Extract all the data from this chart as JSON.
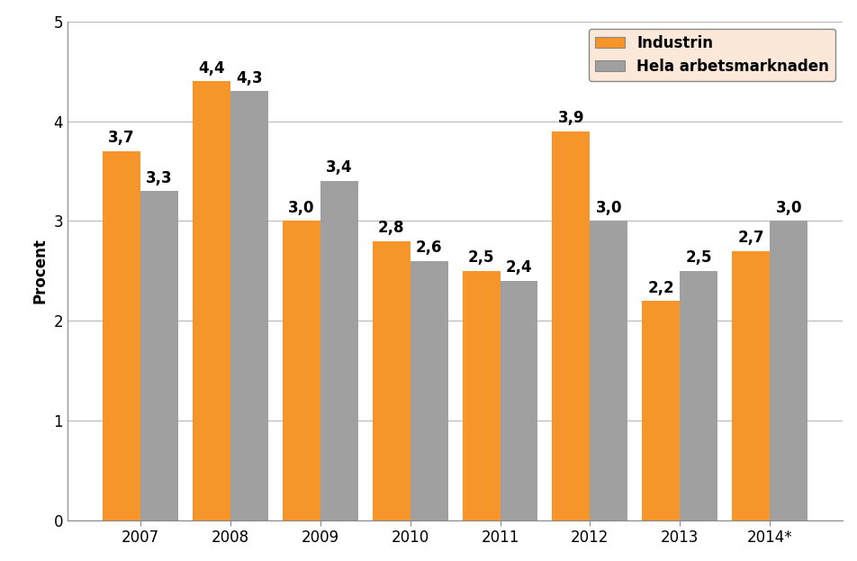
{
  "years": [
    "2007",
    "2008",
    "2009",
    "2010",
    "2011",
    "2012",
    "2013",
    "2014*"
  ],
  "industrin": [
    3.7,
    4.4,
    3.0,
    2.8,
    2.5,
    3.9,
    2.2,
    2.7
  ],
  "hela_arbetsmarknaden": [
    3.3,
    4.3,
    3.4,
    2.6,
    2.4,
    3.0,
    2.5,
    3.0
  ],
  "industrin_color": "#F5952A",
  "hela_color": "#A0A0A0",
  "ylabel": "Procent",
  "ylim": [
    0,
    5
  ],
  "yticks": [
    0,
    1,
    2,
    3,
    4,
    5
  ],
  "legend_industrin": "Industrin",
  "legend_hela": "Hela arbetsmarknaden",
  "bar_width": 0.42,
  "legend_facecolor": "#FCE8D8",
  "background_color": "#ffffff",
  "grid_color": "#C0C0C0",
  "label_fontsize": 12,
  "tick_fontsize": 12,
  "value_fontsize": 12
}
